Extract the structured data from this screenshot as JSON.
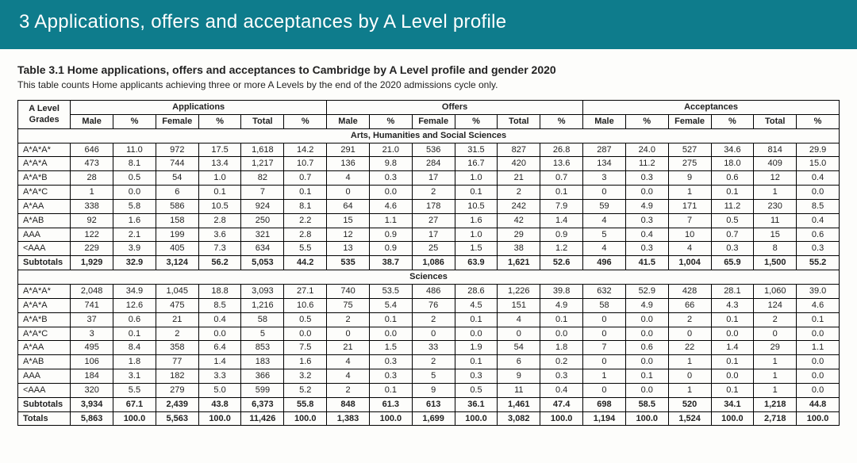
{
  "banner": "3 Applications, offers and acceptances by A Level profile",
  "title": "Table 3.1 Home applications, offers and acceptances to Cambridge by A Level profile and gender 2020",
  "subtitle": "This table counts Home applicants achieving three or more A Levels by the end of the 2020 admissions cycle only.",
  "colGroupLabels": {
    "grades": "A Level Grades",
    "apps": "Applications",
    "offers": "Offers",
    "accepts": "Acceptances"
  },
  "subCols": [
    "Male",
    "%",
    "Female",
    "%",
    "Total",
    "%"
  ],
  "sections": [
    {
      "name": "Arts, Humanities and Social Sciences",
      "rows": [
        {
          "label": "A*A*A*",
          "v": [
            "646",
            "11.0",
            "972",
            "17.5",
            "1,618",
            "14.2",
            "291",
            "21.0",
            "536",
            "31.5",
            "827",
            "26.8",
            "287",
            "24.0",
            "527",
            "34.6",
            "814",
            "29.9"
          ]
        },
        {
          "label": "A*A*A",
          "v": [
            "473",
            "8.1",
            "744",
            "13.4",
            "1,217",
            "10.7",
            "136",
            "9.8",
            "284",
            "16.7",
            "420",
            "13.6",
            "134",
            "11.2",
            "275",
            "18.0",
            "409",
            "15.0"
          ]
        },
        {
          "label": "A*A*B",
          "v": [
            "28",
            "0.5",
            "54",
            "1.0",
            "82",
            "0.7",
            "4",
            "0.3",
            "17",
            "1.0",
            "21",
            "0.7",
            "3",
            "0.3",
            "9",
            "0.6",
            "12",
            "0.4"
          ]
        },
        {
          "label": "A*A*C",
          "v": [
            "1",
            "0.0",
            "6",
            "0.1",
            "7",
            "0.1",
            "0",
            "0.0",
            "2",
            "0.1",
            "2",
            "0.1",
            "0",
            "0.0",
            "1",
            "0.1",
            "1",
            "0.0"
          ]
        },
        {
          "label": "A*AA",
          "v": [
            "338",
            "5.8",
            "586",
            "10.5",
            "924",
            "8.1",
            "64",
            "4.6",
            "178",
            "10.5",
            "242",
            "7.9",
            "59",
            "4.9",
            "171",
            "11.2",
            "230",
            "8.5"
          ]
        },
        {
          "label": "A*AB",
          "v": [
            "92",
            "1.6",
            "158",
            "2.8",
            "250",
            "2.2",
            "15",
            "1.1",
            "27",
            "1.6",
            "42",
            "1.4",
            "4",
            "0.3",
            "7",
            "0.5",
            "11",
            "0.4"
          ]
        },
        {
          "label": "AAA",
          "v": [
            "122",
            "2.1",
            "199",
            "3.6",
            "321",
            "2.8",
            "12",
            "0.9",
            "17",
            "1.0",
            "29",
            "0.9",
            "5",
            "0.4",
            "10",
            "0.7",
            "15",
            "0.6"
          ]
        },
        {
          "label": "<AAA",
          "v": [
            "229",
            "3.9",
            "405",
            "7.3",
            "634",
            "5.5",
            "13",
            "0.9",
            "25",
            "1.5",
            "38",
            "1.2",
            "4",
            "0.3",
            "4",
            "0.3",
            "8",
            "0.3"
          ]
        }
      ],
      "subtotal": {
        "label": "Subtotals",
        "v": [
          "1,929",
          "32.9",
          "3,124",
          "56.2",
          "5,053",
          "44.2",
          "535",
          "38.7",
          "1,086",
          "63.9",
          "1,621",
          "52.6",
          "496",
          "41.5",
          "1,004",
          "65.9",
          "1,500",
          "55.2"
        ]
      }
    },
    {
      "name": "Sciences",
      "rows": [
        {
          "label": "A*A*A*",
          "v": [
            "2,048",
            "34.9",
            "1,045",
            "18.8",
            "3,093",
            "27.1",
            "740",
            "53.5",
            "486",
            "28.6",
            "1,226",
            "39.8",
            "632",
            "52.9",
            "428",
            "28.1",
            "1,060",
            "39.0"
          ]
        },
        {
          "label": "A*A*A",
          "v": [
            "741",
            "12.6",
            "475",
            "8.5",
            "1,216",
            "10.6",
            "75",
            "5.4",
            "76",
            "4.5",
            "151",
            "4.9",
            "58",
            "4.9",
            "66",
            "4.3",
            "124",
            "4.6"
          ]
        },
        {
          "label": "A*A*B",
          "v": [
            "37",
            "0.6",
            "21",
            "0.4",
            "58",
            "0.5",
            "2",
            "0.1",
            "2",
            "0.1",
            "4",
            "0.1",
            "0",
            "0.0",
            "2",
            "0.1",
            "2",
            "0.1"
          ]
        },
        {
          "label": "A*A*C",
          "v": [
            "3",
            "0.1",
            "2",
            "0.0",
            "5",
            "0.0",
            "0",
            "0.0",
            "0",
            "0.0",
            "0",
            "0.0",
            "0",
            "0.0",
            "0",
            "0.0",
            "0",
            "0.0"
          ]
        },
        {
          "label": "A*AA",
          "v": [
            "495",
            "8.4",
            "358",
            "6.4",
            "853",
            "7.5",
            "21",
            "1.5",
            "33",
            "1.9",
            "54",
            "1.8",
            "7",
            "0.6",
            "22",
            "1.4",
            "29",
            "1.1"
          ]
        },
        {
          "label": "A*AB",
          "v": [
            "106",
            "1.8",
            "77",
            "1.4",
            "183",
            "1.6",
            "4",
            "0.3",
            "2",
            "0.1",
            "6",
            "0.2",
            "0",
            "0.0",
            "1",
            "0.1",
            "1",
            "0.0"
          ]
        },
        {
          "label": "AAA",
          "v": [
            "184",
            "3.1",
            "182",
            "3.3",
            "366",
            "3.2",
            "4",
            "0.3",
            "5",
            "0.3",
            "9",
            "0.3",
            "1",
            "0.1",
            "0",
            "0.0",
            "1",
            "0.0"
          ]
        },
        {
          "label": "<AAA",
          "v": [
            "320",
            "5.5",
            "279",
            "5.0",
            "599",
            "5.2",
            "2",
            "0.1",
            "9",
            "0.5",
            "11",
            "0.4",
            "0",
            "0.0",
            "1",
            "0.1",
            "1",
            "0.0"
          ]
        }
      ],
      "subtotal": {
        "label": "Subtotals",
        "v": [
          "3,934",
          "67.1",
          "2,439",
          "43.8",
          "6,373",
          "55.8",
          "848",
          "61.3",
          "613",
          "36.1",
          "1,461",
          "47.4",
          "698",
          "58.5",
          "520",
          "34.1",
          "1,218",
          "44.8"
        ]
      }
    }
  ],
  "total": {
    "label": "Totals",
    "v": [
      "5,863",
      "100.0",
      "5,563",
      "100.0",
      "11,426",
      "100.0",
      "1,383",
      "100.0",
      "1,699",
      "100.0",
      "3,082",
      "100.0",
      "1,194",
      "100.0",
      "1,524",
      "100.0",
      "2,718",
      "100.0"
    ]
  }
}
